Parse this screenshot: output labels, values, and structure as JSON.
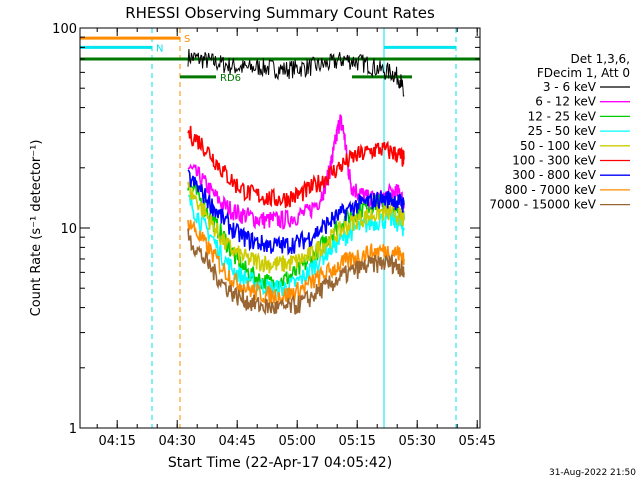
{
  "chart_data": {
    "type": "line",
    "title": "RHESSI Observing Summary Count Rates",
    "xlabel": "Start Time (22-Apr-17 04:05:42)",
    "ylabel": "Count Rate (s⁻¹ detector⁻¹)",
    "x_unit": "minutes after 04:05:42",
    "xlim": [
      0,
      100
    ],
    "ylim": [
      1,
      100
    ],
    "yscale": "log",
    "x_ticks": [
      {
        "label": "04:15",
        "x": 9.3
      },
      {
        "label": "04:30",
        "x": 24.3
      },
      {
        "label": "04:45",
        "x": 39.3
      },
      {
        "label": "05:00",
        "x": 54.3
      },
      {
        "label": "05:15",
        "x": 69.3
      },
      {
        "label": "05:30",
        "x": 84.3
      },
      {
        "label": "05:45",
        "x": 99.3
      }
    ],
    "y_ticks": [
      {
        "label": "1",
        "y": 1
      },
      {
        "label": "10",
        "y": 10
      },
      {
        "label": "100",
        "y": 100
      }
    ],
    "legend_header": [
      "Det 1,3,6,",
      "FDecim 1, Att 0"
    ],
    "series": [
      {
        "name": "3 - 6 keV",
        "color": "#000000",
        "x": [
          27,
          30,
          33,
          36,
          39,
          42,
          45,
          48,
          51,
          54,
          57,
          60,
          63,
          66,
          69,
          72,
          75,
          78,
          80,
          81
        ],
        "y": [
          72,
          70,
          68,
          66,
          64,
          63,
          64,
          63,
          62,
          63,
          64,
          65,
          67,
          70,
          68,
          66,
          62,
          60,
          56,
          46
        ]
      },
      {
        "name": "6 - 12 keV",
        "color": "#ff00ff",
        "x": [
          27,
          30,
          33,
          36,
          39,
          42,
          45,
          48,
          51,
          54,
          57,
          60,
          62,
          63,
          64,
          65,
          66,
          67,
          68,
          70,
          72,
          75,
          78,
          80,
          81
        ],
        "y": [
          20,
          18,
          15,
          13,
          12,
          11.5,
          11,
          11,
          11,
          11.5,
          12,
          14,
          18,
          22,
          28,
          35,
          30,
          20,
          16,
          15,
          14,
          14,
          15,
          15,
          13
        ]
      },
      {
        "name": "12 - 25 keV",
        "color": "#00cc00",
        "x": [
          27,
          30,
          33,
          36,
          39,
          42,
          45,
          48,
          51,
          54,
          57,
          60,
          63,
          66,
          69,
          72,
          75,
          78,
          80,
          81
        ],
        "y": [
          17,
          14,
          11,
          9,
          7,
          6,
          5.5,
          5.3,
          5.5,
          6,
          6.8,
          8,
          9.5,
          11,
          12,
          13,
          13.5,
          13,
          12,
          11
        ]
      },
      {
        "name": "25 - 50 keV",
        "color": "#00ffff",
        "x": [
          27,
          30,
          33,
          36,
          39,
          42,
          45,
          48,
          51,
          54,
          57,
          60,
          63,
          66,
          69,
          72,
          75,
          78,
          80,
          81
        ],
        "y": [
          14,
          11,
          9,
          7,
          6,
          5.5,
          5.2,
          5,
          5,
          5.3,
          6,
          7,
          8,
          9,
          10,
          10.5,
          11,
          11,
          10.5,
          10
        ]
      },
      {
        "name": "50 - 100 keV",
        "color": "#cccc00",
        "x": [
          27,
          30,
          33,
          36,
          39,
          42,
          45,
          48,
          51,
          54,
          57,
          60,
          63,
          66,
          69,
          72,
          75,
          78,
          80,
          81
        ],
        "y": [
          16,
          13,
          10.5,
          8.5,
          7.5,
          7,
          6.8,
          6.6,
          6.6,
          6.8,
          7.2,
          8,
          9,
          10,
          11,
          11.5,
          12,
          12,
          11.5,
          11
        ]
      },
      {
        "name": "100 - 300 keV",
        "color": "#ff0000",
        "x": [
          27,
          30,
          33,
          36,
          39,
          42,
          45,
          48,
          51,
          54,
          57,
          60,
          63,
          66,
          69,
          72,
          75,
          78,
          80,
          81
        ],
        "y": [
          30,
          27,
          23,
          19,
          16.5,
          15,
          14.5,
          14,
          14,
          14.5,
          15.5,
          17,
          19,
          21,
          23,
          24,
          25,
          24,
          23,
          22
        ]
      },
      {
        "name": "300 - 800 keV",
        "color": "#0000ff",
        "x": [
          27,
          30,
          33,
          36,
          39,
          42,
          45,
          48,
          51,
          54,
          57,
          60,
          63,
          66,
          69,
          72,
          75,
          78,
          80,
          81
        ],
        "y": [
          18,
          15.5,
          13,
          11,
          9.5,
          8.8,
          8.4,
          8.2,
          8.2,
          8.4,
          8.9,
          9.8,
          11,
          12,
          13,
          13.5,
          14,
          14,
          13.5,
          13
        ]
      },
      {
        "name": "800 - 7000 keV",
        "color": "#ff8c00",
        "x": [
          27,
          30,
          33,
          36,
          39,
          42,
          45,
          48,
          51,
          54,
          57,
          60,
          63,
          66,
          69,
          72,
          75,
          78,
          80,
          81
        ],
        "y": [
          11,
          9,
          7.5,
          6.2,
          5.4,
          5,
          4.7,
          4.6,
          4.6,
          4.8,
          5.2,
          5.7,
          6.2,
          6.7,
          7.2,
          7.5,
          7.7,
          7.7,
          7.4,
          7
        ]
      },
      {
        "name": "7000 - 15000 keV",
        "color": "#996633",
        "x": [
          27,
          30,
          33,
          36,
          39,
          42,
          45,
          48,
          51,
          54,
          57,
          60,
          63,
          66,
          69,
          72,
          75,
          78,
          80,
          81
        ],
        "y": [
          9,
          7.5,
          6.2,
          5.2,
          4.6,
          4.3,
          4.1,
          4,
          4,
          4.1,
          4.4,
          4.9,
          5.3,
          5.8,
          6.2,
          6.5,
          6.7,
          6.7,
          6.4,
          6
        ]
      }
    ],
    "flag_bars": [
      {
        "label": "S",
        "color": "#ff8c00",
        "y": 89,
        "x_start": 0,
        "x_end": 25
      },
      {
        "label": "N",
        "color": "#00e5ee",
        "y": 80,
        "x_start": 0,
        "x_end": 18
      },
      {
        "label": "",
        "color": "#00e5ee",
        "y": 80,
        "x_start": 76,
        "x_end": 94
      },
      {
        "label": "",
        "color": "#007700",
        "y": 70,
        "x_start": 0,
        "x_end": 100
      },
      {
        "label": "RD6",
        "color": "#007700",
        "y": 57,
        "x_start": 25,
        "x_end": 34
      },
      {
        "label": "",
        "color": "#007700",
        "y": 57,
        "x_start": 68,
        "x_end": 83
      }
    ],
    "vlines": [
      {
        "x": 0,
        "color": "#00e5ee",
        "style": "solid"
      },
      {
        "x": 18,
        "color": "#00e5ee",
        "style": "dashed"
      },
      {
        "x": 25,
        "color": "#ff8c00",
        "style": "dashed"
      },
      {
        "x": 76,
        "color": "#00e5ee",
        "style": "solid"
      },
      {
        "x": 94,
        "color": "#00e5ee",
        "style": "dashed"
      }
    ],
    "legend_placement": "top-right",
    "grid": false
  },
  "footer": {
    "timestamp": "31-Aug-2022 21:50"
  }
}
